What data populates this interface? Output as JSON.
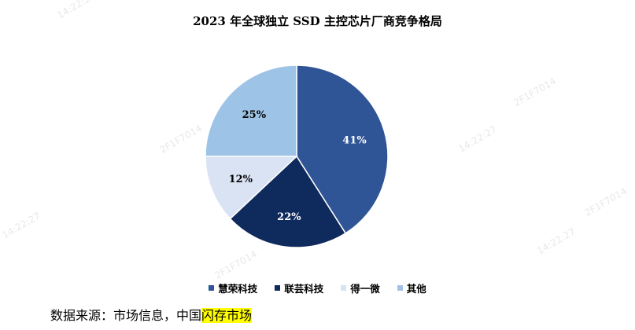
{
  "chart_data": {
    "type": "pie",
    "title": "2023 年全球独立 SSD 主控芯片厂商竞争格局",
    "categories": [
      "慧荣科技",
      "联芸科技",
      "得一微",
      "其他"
    ],
    "values": [
      41,
      22,
      12,
      25
    ],
    "value_labels": [
      "41%",
      "22%",
      "12%",
      "25%"
    ],
    "colors": [
      "#2f5597",
      "#0f2a5c",
      "#dae3f3",
      "#9dc3e6"
    ],
    "label_colors": [
      "#ffffff",
      "#ffffff",
      "#000000",
      "#000000"
    ],
    "start": "12 o'clock",
    "direction": "clockwise",
    "legend_position": "bottom"
  },
  "source": {
    "prefix": "数据来源：市场信息，中国",
    "highlight": "闪存市场"
  },
  "watermark": {
    "time": "14:22:27",
    "id": "2F1F7014"
  }
}
